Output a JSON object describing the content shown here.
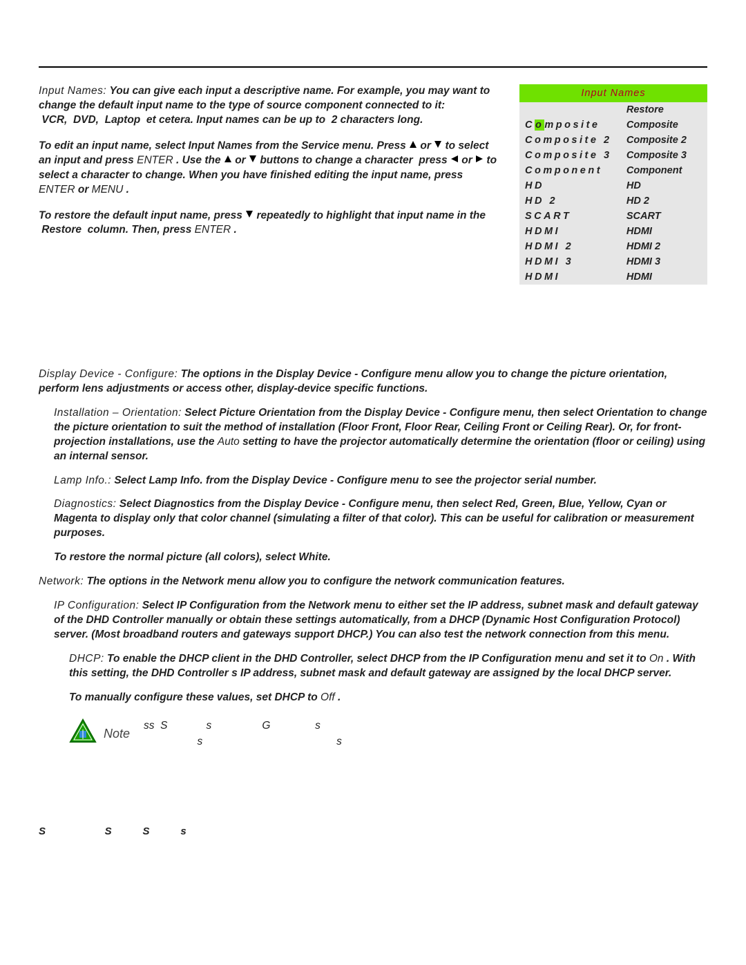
{
  "colors": {
    "rule": "#000000",
    "text": "#222222",
    "accent_bg": "#6fe100",
    "accent_text": "#b00020",
    "table_bg": "#e6e6e6",
    "note_green_fill": "#1aa000",
    "note_green_stroke": "#0b6b00",
    "note_inner": "#2f8bd8"
  },
  "body": {
    "p1_head": "Input Names:",
    "p1": " You can give each input a descriptive name. For example, you may want to change the default input name to the type of source component connected to it:  VCR,  DVD,  Laptop  et cetera. Input names can be up to  2 characters long.",
    "p2a": "To edit an input name, select Input Names from the Service menu. Press ",
    "p2b": " or ",
    "p2c": " to select an input and press ",
    "p2d": "ENTER",
    "p2e": ". Use the ",
    "p2f": " or ",
    "p2g": " buttons to change a character  press ",
    "p2h": " or ",
    "p2i": " to select a character to change. When you have finished editing the input name, press ",
    "p2j": "ENTER",
    "p2k": " or ",
    "p2l": "MENU",
    "p2m": ".",
    "p3a": "To restore the default input name, press ",
    "p3b": " repeatedly to highlight that input name in the  Restore  column. Then, press ",
    "p3c": "ENTER",
    "p3d": "."
  },
  "table": {
    "title": "Input Names",
    "restore_label": "Restore",
    "rows": [
      {
        "left": "Composite",
        "right": "Composite"
      },
      {
        "left": "Composite 2",
        "right": "Composite 2"
      },
      {
        "left": "Composite 3",
        "right": "Composite 3"
      },
      {
        "left": "Component",
        "right": "Component"
      },
      {
        "left": "HD",
        "right": "HD"
      },
      {
        "left": "HD 2",
        "right": "HD 2"
      },
      {
        "left": "SCART",
        "right": "SCART"
      },
      {
        "left": "HDMI",
        "right": "HDMI"
      },
      {
        "left": "HDMI 2",
        "right": "HDMI 2"
      },
      {
        "left": "HDMI 3",
        "right": "HDMI 3"
      },
      {
        "left": "HDMI",
        "right": "HDMI"
      }
    ],
    "highlight_row": 0,
    "highlight_char": 1
  },
  "sections": {
    "dd_head": "Display Device - Configure:",
    "dd_body": " The options in the Display Device - Configure menu allow you to change the picture orientation, perform lens adjustments or access other, display-device specific functions.",
    "inst_head": "Installation – Orientation:",
    "inst_body_a": " Select Picture Orientation from the Display Device - Configure menu, then select Orientation to change the picture orientation to suit the method of installation (Floor Front, Floor Rear, Ceiling Front or Ceiling Rear). Or, for front-projection installations, use the ",
    "inst_auto": "Auto",
    "inst_body_b": " setting to have the projector automatically determine the orientation (floor or ceiling) using an internal sensor.",
    "lamp_head": "Lamp Info.:",
    "lamp_body": " Select Lamp Info. from the Display Device - Configure menu to see the projector serial number.",
    "diag_head": "Diagnostics:",
    "diag_body": " Select Diagnostics from the Display Device - Configure menu, then select Red, Green, Blue, Yellow, Cyan or Magenta to display only that color channel (simulating a filter of that color). This can be useful for calibration or measurement purposes.",
    "diag_restore": "To restore the normal picture (all colors), select White.",
    "net_head": "Network:",
    "net_body": " The options in the Network menu allow you to configure the network communication features.",
    "ip_head": "IP Configuration:",
    "ip_body": " Select IP Configuration from the Network menu to either set the IP address, subnet mask and default gateway of the DHD Controller manually or obtain these settings automatically, from a DHCP (Dynamic Host Configuration Protocol) server. (Most broadband routers and gateways support DHCP.) You can also test the network connection from this menu.",
    "dhcp_head": "DHCP:",
    "dhcp_body_a": " To enable the DHCP client in the DHD Controller, select DHCP from the IP Configuration menu and set it to ",
    "dhcp_on": "On",
    "dhcp_body_b": ". With this setting, the DHD Controller s IP address, subnet mask and default gateway are assigned by the local DHCP server.",
    "dhcp_manual_a": "To manually configure these values, set DHCP to ",
    "dhcp_off": "Off",
    "dhcp_manual_b": "."
  },
  "note": {
    "label": "Note",
    "line1": "ss  S             s                 G               s",
    "line2": "                  s                                             s"
  },
  "footer": {
    "text": "S          S     S     s"
  }
}
